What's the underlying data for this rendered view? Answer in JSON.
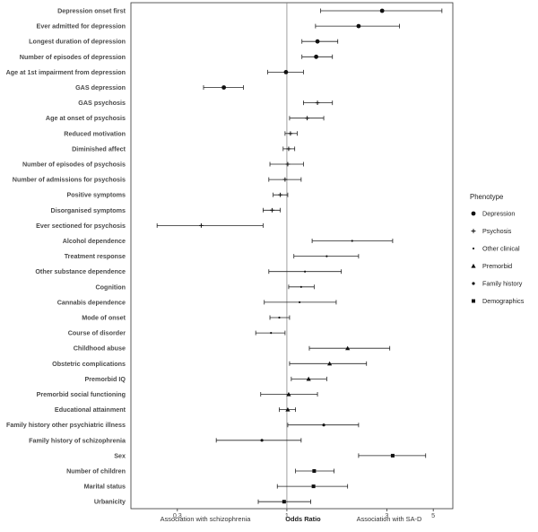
{
  "chart_data": {
    "type": "scatter",
    "subtype": "forest-plot",
    "x_scale": "log",
    "xlim": [
      0.18,
      6.2
    ],
    "x_ticks": [
      0.3,
      1,
      3,
      5
    ],
    "x_tick_labels": [
      "0.3",
      "1",
      "3",
      "5"
    ],
    "reference_line": 1,
    "xlabel_left": "Association with schizophrenia",
    "xlabel_center": "Odds Ratio",
    "xlabel_right": "Association with SA-D",
    "legend": {
      "title": "Phenotype",
      "position": "right",
      "entries": [
        {
          "label": "Depression",
          "shape": "circle"
        },
        {
          "label": "Psychosis",
          "shape": "plus"
        },
        {
          "label": "Other clinical",
          "shape": "dot"
        },
        {
          "label": "Premorbid",
          "shape": "triangle"
        },
        {
          "label": "Family history",
          "shape": "small-circle"
        },
        {
          "label": "Demographics",
          "shape": "square"
        }
      ]
    },
    "rows": [
      {
        "label": "Depression onset first",
        "group": "Depression",
        "or": 2.85,
        "lo": 1.45,
        "hi": 5.5
      },
      {
        "label": "Ever admitted for depression",
        "group": "Depression",
        "or": 2.2,
        "lo": 1.37,
        "hi": 3.45
      },
      {
        "label": "Longest duration of depression",
        "group": "Depression",
        "or": 1.4,
        "lo": 1.18,
        "hi": 1.75
      },
      {
        "label": "Number of episodes of depression",
        "group": "Depression",
        "or": 1.38,
        "lo": 1.18,
        "hi": 1.65
      },
      {
        "label": "Age at 1st impairment from depression",
        "group": "Depression",
        "or": 0.99,
        "lo": 0.81,
        "hi": 1.2
      },
      {
        "label": "GAS depression",
        "group": "Depression",
        "or": 0.5,
        "lo": 0.4,
        "hi": 0.62
      },
      {
        "label": "GAS psychosis",
        "group": "Psychosis",
        "or": 1.4,
        "lo": 1.2,
        "hi": 1.65
      },
      {
        "label": "Age at onset of psychosis",
        "group": "Psychosis",
        "or": 1.25,
        "lo": 1.03,
        "hi": 1.5
      },
      {
        "label": "Reduced motivation",
        "group": "Psychosis",
        "or": 1.04,
        "lo": 0.98,
        "hi": 1.12
      },
      {
        "label": "Diminished affect",
        "group": "Psychosis",
        "or": 1.02,
        "lo": 0.96,
        "hi": 1.09
      },
      {
        "label": "Number of episodes of psychosis",
        "group": "Psychosis",
        "or": 1.01,
        "lo": 0.83,
        "hi": 1.2
      },
      {
        "label": "Number of admissions for psychosis",
        "group": "Psychosis",
        "or": 0.98,
        "lo": 0.82,
        "hi": 1.17
      },
      {
        "label": "Positive symptoms",
        "group": "Psychosis",
        "or": 0.93,
        "lo": 0.86,
        "hi": 1.01
      },
      {
        "label": "Disorganised symptoms",
        "group": "Psychosis",
        "or": 0.85,
        "lo": 0.77,
        "hi": 0.93
      },
      {
        "label": "Ever sectioned for psychosis",
        "group": "Psychosis",
        "or": 0.39,
        "lo": 0.24,
        "hi": 0.77
      },
      {
        "label": "Alcohol dependence",
        "group": "Other clinical",
        "or": 2.05,
        "lo": 1.32,
        "hi": 3.2
      },
      {
        "label": "Treatment response",
        "group": "Other clinical",
        "or": 1.55,
        "lo": 1.08,
        "hi": 2.2
      },
      {
        "label": "Other substance dependence",
        "group": "Other clinical",
        "or": 1.22,
        "lo": 0.82,
        "hi": 1.82
      },
      {
        "label": "Cognition",
        "group": "Other clinical",
        "or": 1.17,
        "lo": 1.02,
        "hi": 1.35
      },
      {
        "label": "Cannabis dependence",
        "group": "Other clinical",
        "or": 1.15,
        "lo": 0.78,
        "hi": 1.72
      },
      {
        "label": "Mode of onset",
        "group": "Other clinical",
        "or": 0.92,
        "lo": 0.83,
        "hi": 1.03
      },
      {
        "label": "Course of disorder",
        "group": "Other clinical",
        "or": 0.84,
        "lo": 0.71,
        "hi": 0.98
      },
      {
        "label": "Childhood abuse",
        "group": "Premorbid",
        "or": 1.95,
        "lo": 1.28,
        "hi": 3.1
      },
      {
        "label": "Obstetric complications",
        "group": "Premorbid",
        "or": 1.6,
        "lo": 1.03,
        "hi": 2.4
      },
      {
        "label": "Premorbid IQ",
        "group": "Premorbid",
        "or": 1.27,
        "lo": 1.05,
        "hi": 1.55
      },
      {
        "label": "Premorbid social functioning",
        "group": "Premorbid",
        "or": 1.02,
        "lo": 0.75,
        "hi": 1.4
      },
      {
        "label": "Educational attainment",
        "group": "Premorbid",
        "or": 1.01,
        "lo": 0.92,
        "hi": 1.1
      },
      {
        "label": "Family history other psychiatric illness",
        "group": "Family history",
        "or": 1.5,
        "lo": 1.01,
        "hi": 2.2
      },
      {
        "label": "Family history of schizophrenia",
        "group": "Family history",
        "or": 0.76,
        "lo": 0.46,
        "hi": 1.17
      },
      {
        "label": "Sex",
        "group": "Demographics",
        "or": 3.2,
        "lo": 2.2,
        "hi": 4.6
      },
      {
        "label": "Number of children",
        "group": "Demographics",
        "or": 1.35,
        "lo": 1.1,
        "hi": 1.68
      },
      {
        "label": "Marital status",
        "group": "Demographics",
        "or": 1.34,
        "lo": 0.9,
        "hi": 1.95
      },
      {
        "label": "Urbanicity",
        "group": "Demographics",
        "or": 0.97,
        "lo": 0.73,
        "hi": 1.3
      }
    ]
  }
}
